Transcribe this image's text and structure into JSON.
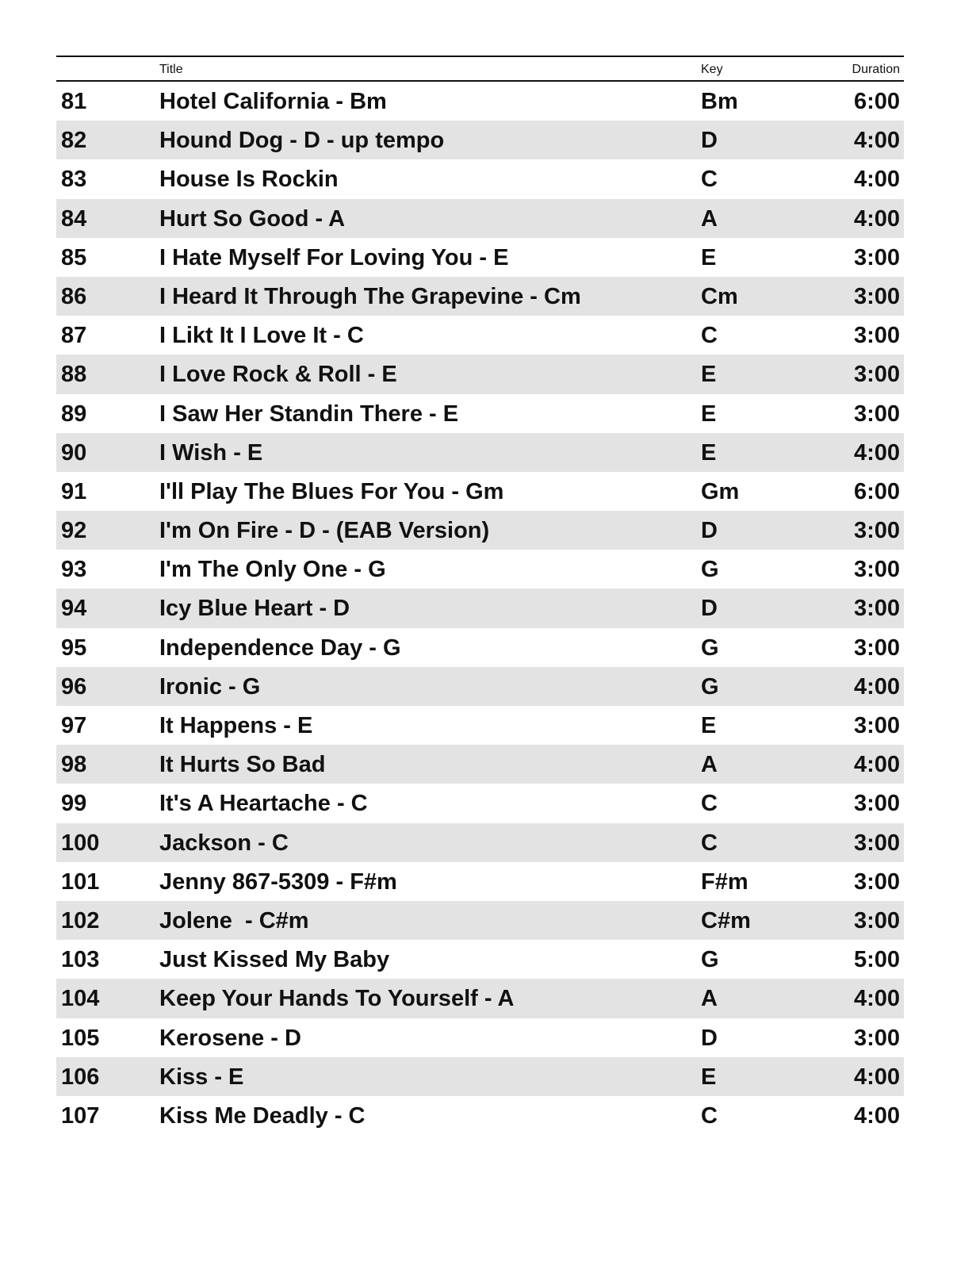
{
  "header": {
    "num": "",
    "title": "Title",
    "key": "Key",
    "duration": "Duration"
  },
  "rows": [
    {
      "num": "81",
      "title": "Hotel California - Bm",
      "key": "Bm",
      "duration": "6:00"
    },
    {
      "num": "82",
      "title": "Hound Dog - D - up tempo",
      "key": "D",
      "duration": "4:00"
    },
    {
      "num": "83",
      "title": "House Is Rockin",
      "key": "C",
      "duration": "4:00"
    },
    {
      "num": "84",
      "title": "Hurt So Good - A",
      "key": "A",
      "duration": "4:00"
    },
    {
      "num": "85",
      "title": "I Hate Myself For Loving You - E",
      "key": "E",
      "duration": "3:00"
    },
    {
      "num": "86",
      "title": "I Heard It Through The Grapevine - Cm",
      "key": "Cm",
      "duration": "3:00"
    },
    {
      "num": "87",
      "title": "I Likt It I Love It - C",
      "key": "C",
      "duration": "3:00"
    },
    {
      "num": "88",
      "title": "I Love Rock & Roll - E",
      "key": "E",
      "duration": "3:00"
    },
    {
      "num": "89",
      "title": "I Saw Her Standin There - E",
      "key": "E",
      "duration": "3:00"
    },
    {
      "num": "90",
      "title": "I Wish - E",
      "key": "E",
      "duration": "4:00"
    },
    {
      "num": "91",
      "title": "I'll Play The Blues For You - Gm",
      "key": "Gm",
      "duration": "6:00"
    },
    {
      "num": "92",
      "title": "I'm On Fire - D - (EAB Version)",
      "key": "D",
      "duration": "3:00"
    },
    {
      "num": "93",
      "title": "I'm The Only One - G",
      "key": "G",
      "duration": "3:00"
    },
    {
      "num": "94",
      "title": "Icy Blue Heart - D",
      "key": "D",
      "duration": "3:00"
    },
    {
      "num": "95",
      "title": "Independence Day - G",
      "key": "G",
      "duration": "3:00"
    },
    {
      "num": "96",
      "title": "Ironic - G",
      "key": "G",
      "duration": "4:00"
    },
    {
      "num": "97",
      "title": "It Happens - E",
      "key": "E",
      "duration": "3:00"
    },
    {
      "num": "98",
      "title": "It Hurts So Bad",
      "key": "A",
      "duration": "4:00"
    },
    {
      "num": "99",
      "title": "It's A Heartache - C",
      "key": "C",
      "duration": "3:00"
    },
    {
      "num": "100",
      "title": "Jackson - C",
      "key": "C",
      "duration": "3:00"
    },
    {
      "num": "101",
      "title": "Jenny 867-5309 - F#m",
      "key": "F#m",
      "duration": "3:00"
    },
    {
      "num": "102",
      "title": "Jolene  - C#m",
      "key": "C#m",
      "duration": "3:00"
    },
    {
      "num": "103",
      "title": "Just Kissed My Baby",
      "key": "G",
      "duration": "5:00"
    },
    {
      "num": "104",
      "title": "Keep Your Hands To Yourself - A",
      "key": "A",
      "duration": "4:00"
    },
    {
      "num": "105",
      "title": "Kerosene - D",
      "key": "D",
      "duration": "3:00"
    },
    {
      "num": "106",
      "title": "Kiss - E",
      "key": "E",
      "duration": "4:00"
    },
    {
      "num": "107",
      "title": "Kiss Me Deadly - C",
      "key": "C",
      "duration": "4:00"
    }
  ]
}
